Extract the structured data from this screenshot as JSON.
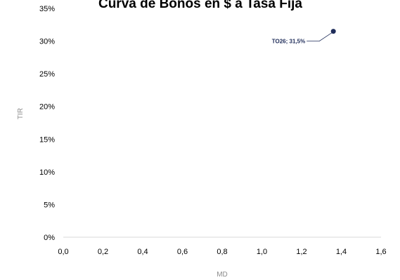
{
  "chart_data": {
    "type": "scatter",
    "title": "Curva de Bonos en $ a Tasa Fija",
    "xlabel": "MD",
    "ylabel": "TIR",
    "xlim": [
      0,
      1.6
    ],
    "ylim": [
      0,
      0.35
    ],
    "x_ticks": [
      0,
      0.2,
      0.4,
      0.6,
      0.8,
      1.0,
      1.2,
      1.4,
      1.6
    ],
    "x_tick_labels": [
      "0,0",
      "0,2",
      "0,4",
      "0,6",
      "0,8",
      "1,0",
      "1,2",
      "1,4",
      "1,6"
    ],
    "y_ticks": [
      0,
      0.05,
      0.1,
      0.15,
      0.2,
      0.25,
      0.3,
      0.35
    ],
    "y_tick_labels": [
      "0%",
      "5%",
      "10%",
      "15%",
      "20%",
      "25%",
      "30%",
      "35%"
    ],
    "grid": false,
    "legend": "none",
    "series": [
      {
        "color": "#1f2d5a",
        "points": [
          {
            "x": 1.36,
            "y": 0.315,
            "label": "TO26; 31,5%"
          }
        ]
      }
    ]
  }
}
